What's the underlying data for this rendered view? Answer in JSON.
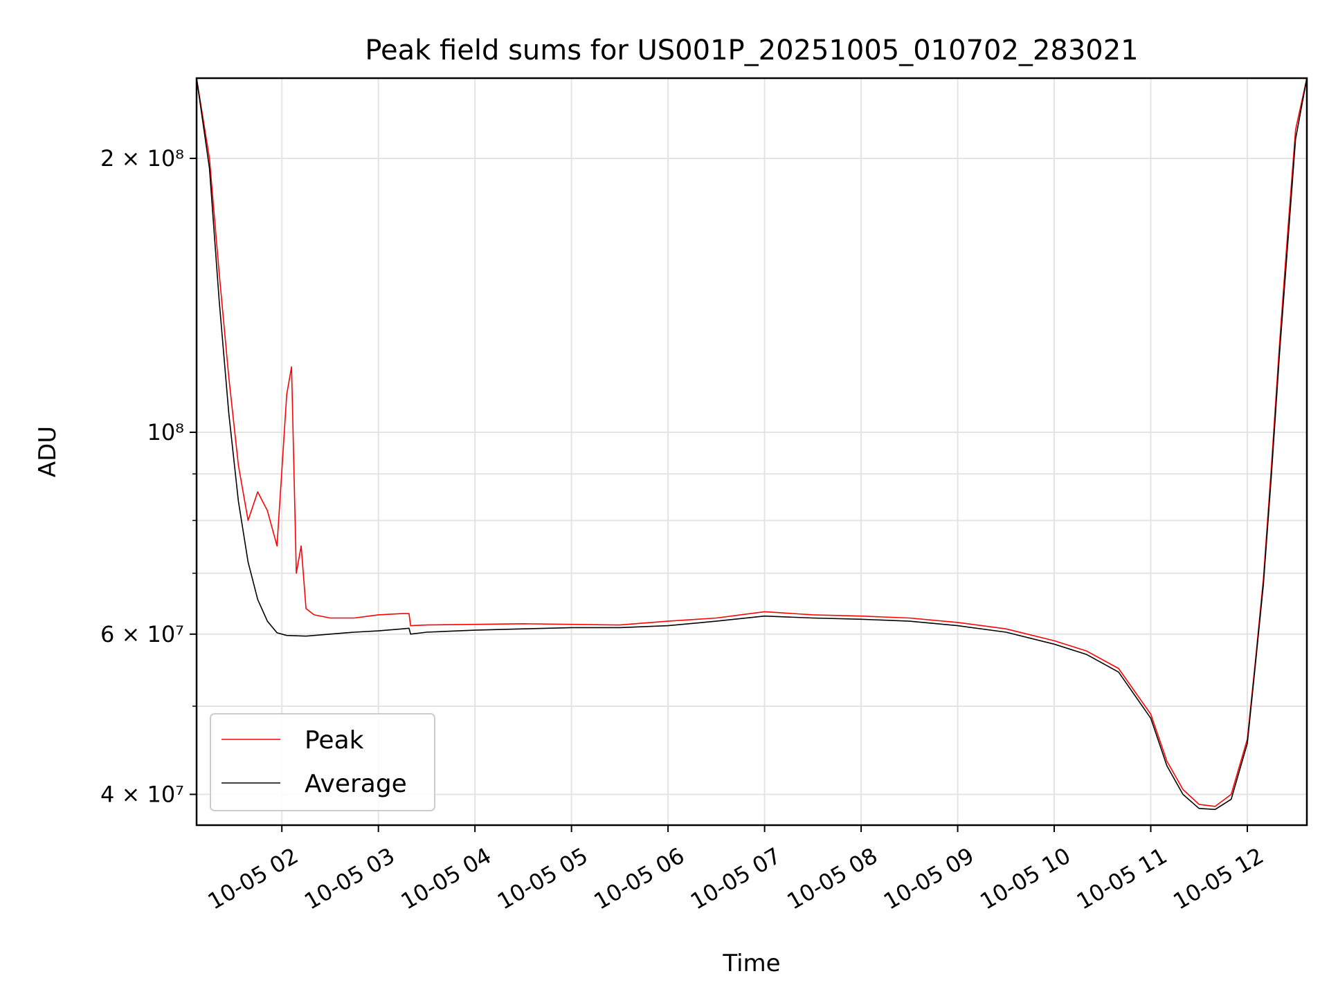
{
  "chart_data": {
    "type": "line",
    "title": "Peak field sums for US001P_20251005_010702_283021",
    "xlabel": "Time",
    "ylabel": "ADU",
    "yscale": "log",
    "grid": true,
    "legend_position": "lower-left",
    "xlim": [
      "2025-10-05 01:07",
      "2025-10-05 12:37"
    ],
    "ylim": [
      37000000,
      245000000
    ],
    "x_ticks": [
      "10-05 02",
      "10-05 03",
      "10-05 04",
      "10-05 05",
      "10-05 06",
      "10-05 07",
      "10-05 08",
      "10-05 09",
      "10-05 10",
      "10-05 11",
      "10-05 12"
    ],
    "y_ticks": [
      {
        "value": 40000000,
        "label": "4 × 10⁷"
      },
      {
        "value": 60000000,
        "label": "6 × 10⁷"
      },
      {
        "value": 100000000,
        "label": "10⁸"
      },
      {
        "value": 200000000,
        "label": "2 × 10⁸"
      }
    ],
    "y_minor_ticks": [
      50000000,
      70000000,
      80000000,
      90000000
    ],
    "series": [
      {
        "name": "Peak",
        "color": "#ff0000",
        "x": [
          "2025-10-05 01:07",
          "2025-10-05 01:15",
          "2025-10-05 01:21",
          "2025-10-05 01:27",
          "2025-10-05 01:33",
          "2025-10-05 01:39",
          "2025-10-05 01:45",
          "2025-10-05 01:51",
          "2025-10-05 01:57",
          "2025-10-05 02:03",
          "2025-10-05 02:06",
          "2025-10-05 02:09",
          "2025-10-05 02:12",
          "2025-10-05 02:15",
          "2025-10-05 02:20",
          "2025-10-05 02:30",
          "2025-10-05 02:45",
          "2025-10-05 03:00",
          "2025-10-05 03:15",
          "2025-10-05 03:19",
          "2025-10-05 03:20",
          "2025-10-05 03:30",
          "2025-10-05 04:00",
          "2025-10-05 04:30",
          "2025-10-05 05:00",
          "2025-10-05 05:30",
          "2025-10-05 06:00",
          "2025-10-05 06:30",
          "2025-10-05 07:00",
          "2025-10-05 07:30",
          "2025-10-05 08:00",
          "2025-10-05 08:30",
          "2025-10-05 09:00",
          "2025-10-05 09:30",
          "2025-10-05 10:00",
          "2025-10-05 10:20",
          "2025-10-05 10:40",
          "2025-10-05 11:00",
          "2025-10-05 11:10",
          "2025-10-05 11:20",
          "2025-10-05 11:30",
          "2025-10-05 11:40",
          "2025-10-05 11:50",
          "2025-10-05 12:00",
          "2025-10-05 12:05",
          "2025-10-05 12:10",
          "2025-10-05 12:15",
          "2025-10-05 12:20",
          "2025-10-05 12:25",
          "2025-10-05 12:30",
          "2025-10-05 12:37"
        ],
        "y": [
          245000000,
          200000000,
          150000000,
          115000000,
          92000000,
          80000000,
          86000000,
          82000000,
          75000000,
          110000000,
          118000000,
          70000000,
          75000000,
          64000000,
          63000000,
          62500000,
          62500000,
          63000000,
          63200000,
          63200000,
          61300000,
          61400000,
          61500000,
          61600000,
          61500000,
          61400000,
          62000000,
          62500000,
          63500000,
          63000000,
          62800000,
          62500000,
          61800000,
          60800000,
          59000000,
          57500000,
          55000000,
          49000000,
          43500000,
          40500000,
          39000000,
          38800000,
          40000000,
          46000000,
          56000000,
          69000000,
          92000000,
          125000000,
          165000000,
          215000000,
          245000000
        ]
      },
      {
        "name": "Average",
        "color": "#000000",
        "x": [
          "2025-10-05 01:07",
          "2025-10-05 01:15",
          "2025-10-05 01:21",
          "2025-10-05 01:27",
          "2025-10-05 01:33",
          "2025-10-05 01:39",
          "2025-10-05 01:45",
          "2025-10-05 01:51",
          "2025-10-05 01:57",
          "2025-10-05 02:03",
          "2025-10-05 02:15",
          "2025-10-05 02:30",
          "2025-10-05 02:45",
          "2025-10-05 03:00",
          "2025-10-05 03:15",
          "2025-10-05 03:19",
          "2025-10-05 03:20",
          "2025-10-05 03:30",
          "2025-10-05 04:00",
          "2025-10-05 04:30",
          "2025-10-05 05:00",
          "2025-10-05 05:30",
          "2025-10-05 06:00",
          "2025-10-05 06:30",
          "2025-10-05 07:00",
          "2025-10-05 07:30",
          "2025-10-05 08:00",
          "2025-10-05 08:30",
          "2025-10-05 09:00",
          "2025-10-05 09:30",
          "2025-10-05 10:00",
          "2025-10-05 10:20",
          "2025-10-05 10:40",
          "2025-10-05 11:00",
          "2025-10-05 11:10",
          "2025-10-05 11:20",
          "2025-10-05 11:30",
          "2025-10-05 11:40",
          "2025-10-05 11:50",
          "2025-10-05 12:00",
          "2025-10-05 12:05",
          "2025-10-05 12:10",
          "2025-10-05 12:15",
          "2025-10-05 12:20",
          "2025-10-05 12:25",
          "2025-10-05 12:30",
          "2025-10-05 12:37"
        ],
        "y": [
          245000000,
          195000000,
          140000000,
          105000000,
          84000000,
          72000000,
          65500000,
          62000000,
          60200000,
          59800000,
          59700000,
          60000000,
          60300000,
          60500000,
          60800000,
          60900000,
          60000000,
          60300000,
          60600000,
          60800000,
          61000000,
          61000000,
          61300000,
          62000000,
          62800000,
          62500000,
          62300000,
          62000000,
          61300000,
          60300000,
          58500000,
          57000000,
          54500000,
          48500000,
          43000000,
          40000000,
          38600000,
          38500000,
          39500000,
          45500000,
          55500000,
          68000000,
          90000000,
          122000000,
          160000000,
          210000000,
          245000000
        ]
      }
    ]
  }
}
